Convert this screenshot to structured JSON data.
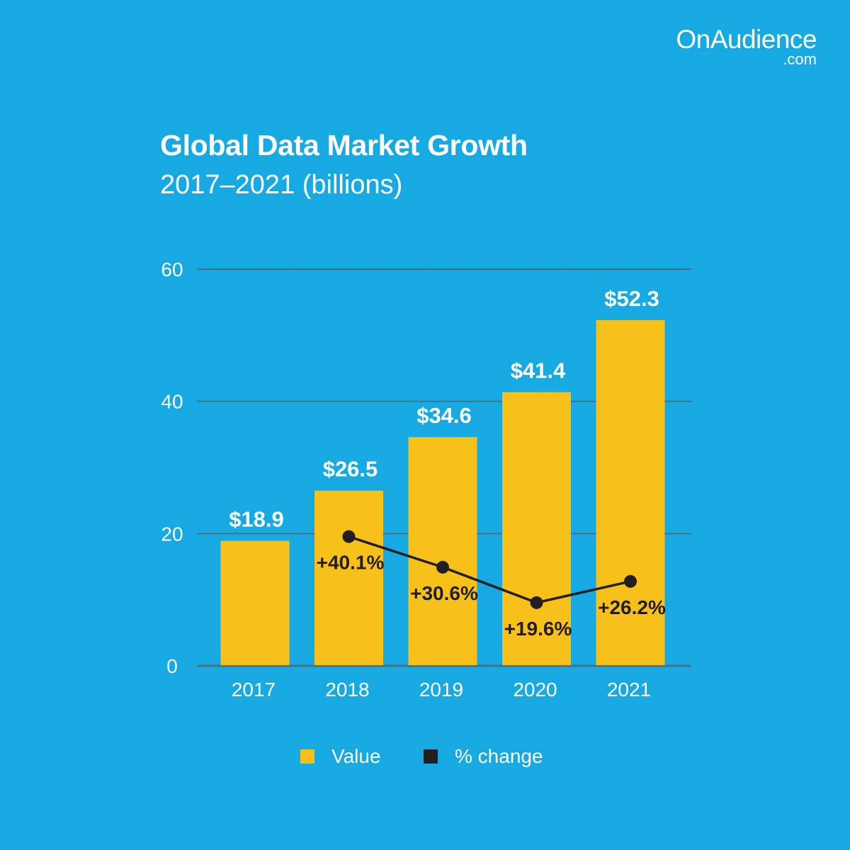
{
  "brand": {
    "name": "OnAudience",
    "domain": ".com"
  },
  "colors": {
    "background": "#17a9e1",
    "bar": "#f7c11a",
    "line": "#231f20",
    "grid": "#4a6f85",
    "text": "#ffffff"
  },
  "chart_data": {
    "type": "bar",
    "title": "Global Data Market Growth",
    "subtitle": "2017–2021 (billions)",
    "categories": [
      "2017",
      "2018",
      "2019",
      "2020",
      "2021"
    ],
    "series": [
      {
        "name": "Value",
        "type": "bar",
        "values": [
          18.9,
          26.5,
          34.6,
          41.4,
          52.3
        ],
        "labels": [
          "$18.9",
          "$26.5",
          "$34.6",
          "$41.4",
          "$52.3"
        ]
      },
      {
        "name": "% change",
        "type": "line",
        "values": [
          null,
          40.1,
          30.6,
          19.6,
          26.2
        ],
        "labels": [
          "",
          "+40.1%",
          "+30.6%",
          "+19.6%",
          "+26.2%"
        ]
      }
    ],
    "ylim": [
      0,
      60
    ],
    "yticks": [
      0,
      20,
      40,
      60
    ],
    "grid": true,
    "legend": "bottom"
  }
}
